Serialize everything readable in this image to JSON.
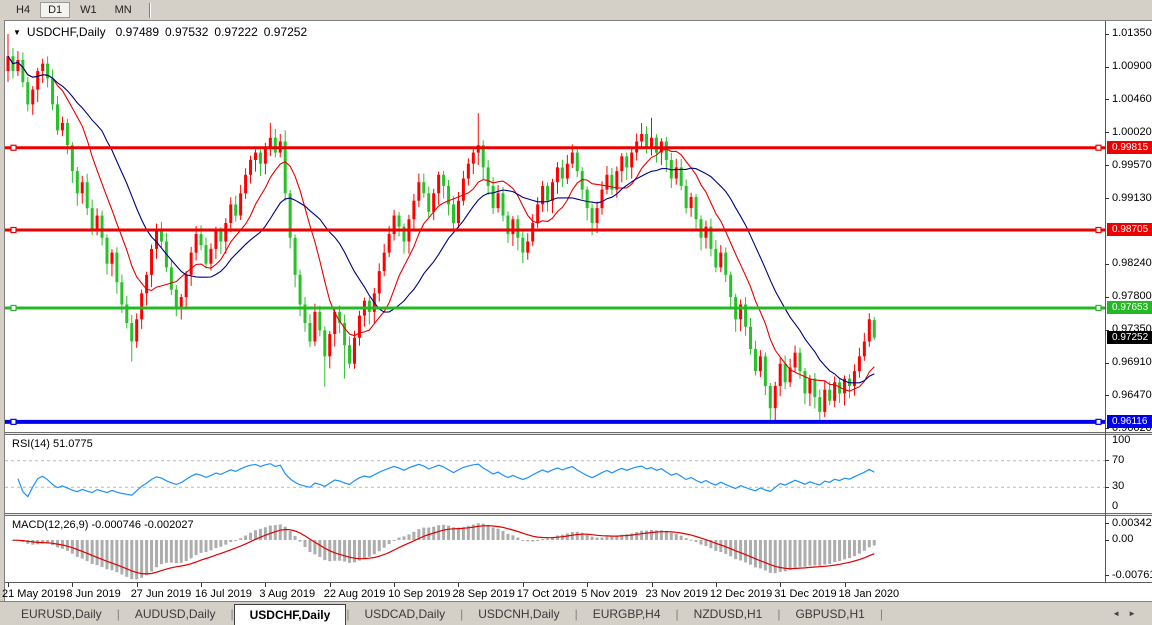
{
  "toolbar": {
    "buttons": [
      {
        "label": "H4",
        "active": false
      },
      {
        "label": "D1",
        "active": true
      },
      {
        "label": "W1",
        "active": false
      },
      {
        "label": "MN",
        "active": false
      }
    ]
  },
  "chart": {
    "symbol_label": "USDCHF,Daily",
    "open": "0.97489",
    "high": "0.97532",
    "low": "0.97222",
    "close": "0.97252",
    "marker_icon": "▼"
  },
  "price_axis": {
    "ticks": [
      "1.01350",
      "1.00900",
      "1.00460",
      "1.00020",
      "0.99570",
      "0.99130",
      "0.98240",
      "0.97800",
      "0.97350",
      "0.96910",
      "0.96470",
      "0.96020"
    ],
    "badges": [
      {
        "value": "0.99815",
        "color": "#ee0000"
      },
      {
        "value": "0.98705",
        "color": "#ee0000"
      },
      {
        "value": "0.97653",
        "color": "#25b825"
      },
      {
        "value": "0.97252",
        "color": "#000000"
      },
      {
        "value": "0.96116",
        "color": "#0000ee"
      }
    ]
  },
  "indicators": {
    "rsi": {
      "label": "RSI(14)",
      "value": "51.0775",
      "axis": [
        "100",
        "70",
        "30",
        "0"
      ],
      "levels": [
        70,
        30
      ],
      "line_color": "#1e90ff"
    },
    "macd": {
      "label": "MACD(12,26,9)",
      "value_main": "-0.000746",
      "value_signal": "-0.002027",
      "axis": [
        "0.003428",
        "0.00",
        "-0.007615"
      ],
      "axis_range": [
        0.003428,
        -0.007615
      ],
      "histogram_color": "#adadad",
      "signal_color": "#e00000"
    }
  },
  "date_axis": {
    "labels": [
      "21 May 2019",
      "8 Jun 2019",
      "27 Jun 2019",
      "16 Jul 2019",
      "3 Aug 2019",
      "22 Aug 2019",
      "10 Sep 2019",
      "28 Sep 2019",
      "17 Oct 2019",
      "5 Nov 2019",
      "23 Nov 2019",
      "12 Dec 2019",
      "31 Dec 2019",
      "18 Jan 2020"
    ]
  },
  "tabs": {
    "items": [
      "EURUSD,Daily",
      "AUDUSD,Daily",
      "USDCHF,Daily",
      "USDCAD,Daily",
      "USDCNH,Daily",
      "EURGBP,H4",
      "NZDUSD,H1",
      "GBPUSD,H1"
    ],
    "active": "USDCHF,Daily",
    "scroll_left_icon": "◄",
    "scroll_right_icon": "►"
  },
  "chart_data": {
    "type": "candlestick",
    "symbol": "USDCHF",
    "timeframe": "Daily",
    "price_range": {
      "top": 1.0135,
      "bottom": 0.9602
    },
    "up_color": "#ff0000",
    "down_color": "#28c128",
    "ma_fast": {
      "period": 10,
      "color": "#e60000"
    },
    "ma_slow": {
      "period": 20,
      "color": "#000080"
    },
    "hlines": [
      {
        "price": 0.99815,
        "color": "#ee0000",
        "width": 3
      },
      {
        "price": 0.98705,
        "color": "#ee0000",
        "width": 3
      },
      {
        "price": 0.97653,
        "color": "#25b825",
        "width": 3
      },
      {
        "price": 0.96116,
        "color": "#0000ee",
        "width": 4
      }
    ],
    "current_price": 0.97252,
    "first_open": 1.0085,
    "closes": [
      1.0105,
      1.0085,
      1.01,
      1.007,
      1.004,
      1.006,
      1.0085,
      1.0095,
      1.0075,
      1.004,
      1.0005,
      1.0015,
      0.9985,
      0.995,
      0.992,
      0.9935,
      0.99,
      0.987,
      0.989,
      0.986,
      0.9825,
      0.984,
      0.98,
      0.977,
      0.9745,
      0.972,
      0.975,
      0.9785,
      0.981,
      0.9845,
      0.987,
      0.9855,
      0.982,
      0.979,
      0.9765,
      0.978,
      0.981,
      0.984,
      0.9865,
      0.985,
      0.9825,
      0.9845,
      0.987,
      0.9855,
      0.988,
      0.9905,
      0.989,
      0.992,
      0.9945,
      0.9965,
      0.9975,
      0.996,
      0.998,
      0.9995,
      0.9975,
      0.999,
      0.992,
      0.986,
      0.981,
      0.977,
      0.9745,
      0.972,
      0.976,
      0.9735,
      0.97,
      0.973,
      0.976,
      0.9745,
      0.9715,
      0.969,
      0.9725,
      0.9755,
      0.9775,
      0.976,
      0.9785,
      0.9815,
      0.984,
      0.9865,
      0.989,
      0.9875,
      0.9855,
      0.9885,
      0.991,
      0.9935,
      0.992,
      0.9895,
      0.992,
      0.9945,
      0.993,
      0.9905,
      0.988,
      0.991,
      0.994,
      0.996,
      0.9975,
      0.9985,
      0.9955,
      0.993,
      0.99,
      0.992,
      0.989,
      0.9865,
      0.9885,
      0.986,
      0.984,
      0.9855,
      0.988,
      0.9905,
      0.993,
      0.991,
      0.9935,
      0.9955,
      0.994,
      0.996,
      0.9975,
      0.995,
      0.9925,
      0.99,
      0.988,
      0.99,
      0.9925,
      0.9945,
      0.9925,
      0.995,
      0.997,
      0.9955,
      0.9975,
      0.999,
      1.0,
      0.998,
      0.9995,
      0.9975,
      0.999,
      0.9965,
      0.994,
      0.9955,
      0.993,
      0.99,
      0.9915,
      0.9885,
      0.986,
      0.9875,
      0.9845,
      0.982,
      0.984,
      0.981,
      0.978,
      0.975,
      0.977,
      0.974,
      0.971,
      0.968,
      0.97,
      0.966,
      0.963,
      0.966,
      0.969,
      0.9665,
      0.9685,
      0.9705,
      0.968,
      0.965,
      0.967,
      0.9645,
      0.9625,
      0.9655,
      0.964,
      0.9665,
      0.965,
      0.967,
      0.966,
      0.968,
      0.97,
      0.972,
      0.975,
      0.97252
    ],
    "open_overrides": {
      "175": 0.97489
    },
    "wick_overrides": {
      "0": {
        "h": 1.0135
      },
      "25": {
        "l": 0.9693
      },
      "53": {
        "h": 1.0015
      },
      "56": {
        "h": 1.0005
      },
      "64": {
        "l": 0.9659
      },
      "68": {
        "l": 0.967
      },
      "95": {
        "h": 1.0028
      },
      "128": {
        "h": 1.0015
      },
      "130": {
        "h": 1.0022
      },
      "154": {
        "l": 0.9613
      },
      "164": {
        "l": 0.9612
      },
      "174": {
        "h": 0.9758
      },
      "175": {
        "h": 0.97532,
        "l": 0.97222
      }
    }
  }
}
